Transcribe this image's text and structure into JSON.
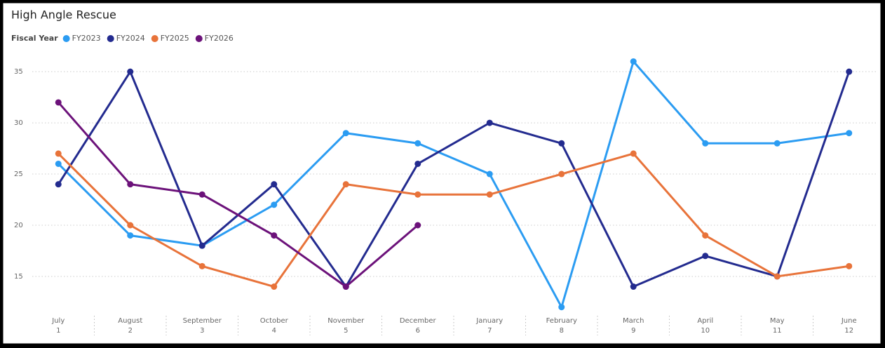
{
  "chart_data": {
    "type": "line",
    "title": "High Angle Rescue",
    "legend_title": "Fiscal Year",
    "categories": [
      {
        "month": "July",
        "number": 1
      },
      {
        "month": "August",
        "number": 2
      },
      {
        "month": "September",
        "number": 3
      },
      {
        "month": "October",
        "number": 4
      },
      {
        "month": "November",
        "number": 5
      },
      {
        "month": "December",
        "number": 6
      },
      {
        "month": "January",
        "number": 7
      },
      {
        "month": "February",
        "number": 8
      },
      {
        "month": "March",
        "number": 9
      },
      {
        "month": "April",
        "number": 10
      },
      {
        "month": "May",
        "number": 11
      },
      {
        "month": "June",
        "number": 12
      }
    ],
    "series": [
      {
        "name": "FY2023",
        "color": "#2b9cf2",
        "values": [
          26,
          19,
          18,
          22,
          29,
          28,
          25,
          12,
          36,
          28,
          28,
          29
        ]
      },
      {
        "name": "FY2024",
        "color": "#232b8f",
        "values": [
          24,
          35,
          18,
          24,
          14,
          26,
          30,
          28,
          14,
          17,
          15,
          35
        ]
      },
      {
        "name": "FY2025",
        "color": "#e8733a",
        "values": [
          27,
          20,
          16,
          14,
          24,
          23,
          23,
          25,
          27,
          19,
          15,
          16
        ]
      },
      {
        "name": "FY2026",
        "color": "#6c127a",
        "values": [
          32,
          24,
          23,
          19,
          14,
          20,
          null,
          null,
          null,
          null,
          null,
          null
        ]
      }
    ],
    "ylim": [
      11.5,
      37
    ],
    "yticks": [
      15,
      20,
      25,
      30,
      35
    ],
    "grid": true,
    "legend": "top-left"
  }
}
